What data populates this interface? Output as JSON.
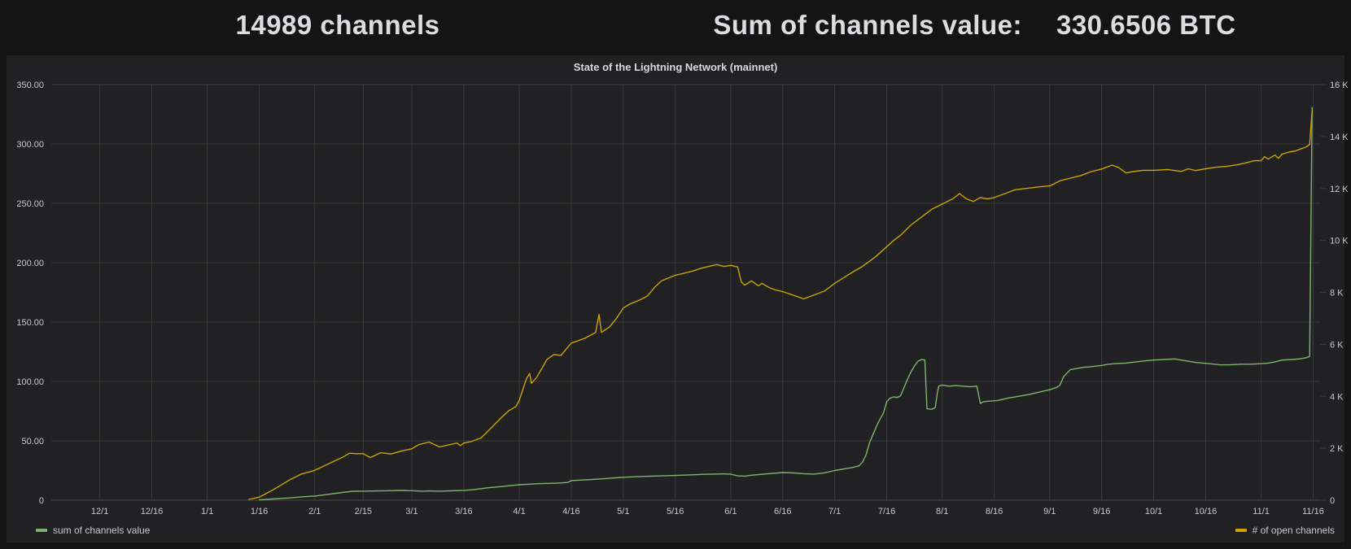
{
  "stats": {
    "channels_text": "14989 channels",
    "sum_label": "Sum of channels value:",
    "sum_value": "330.6506 BTC"
  },
  "chart": {
    "title": "State of the Lightning Network (mainnet)",
    "legend": [
      {
        "label": "sum of channels value",
        "color": "#7eb26d"
      },
      {
        "label": "# of open channels",
        "color": "#cca300"
      }
    ],
    "colors": {
      "grid": "#393939",
      "baseline": "#474747",
      "tick_text": "#c7c8c9",
      "panel_bg": "#212124",
      "page_bg": "#141414",
      "stat_text": "#dcdde1"
    }
  },
  "chart_data": {
    "type": "line",
    "title": "State of the Lightning Network (mainnet)",
    "grid": true,
    "legend_position": "bottom",
    "x_axis": {
      "unit": "date (M/D), Dec through mid-Nov",
      "domain_days": [
        -14,
        352
      ],
      "tick_days": [
        0,
        15,
        31,
        46,
        62,
        76,
        90,
        105,
        121,
        136,
        151,
        166,
        182,
        197,
        212,
        227,
        243,
        258,
        274,
        289,
        304,
        319,
        335,
        350
      ],
      "tick_labels": [
        "12/1",
        "12/16",
        "1/1",
        "1/16",
        "2/1",
        "2/15",
        "3/1",
        "3/16",
        "4/1",
        "4/16",
        "5/1",
        "5/16",
        "6/1",
        "6/16",
        "7/1",
        "7/16",
        "8/1",
        "8/16",
        "9/1",
        "9/16",
        "10/1",
        "10/16",
        "11/1",
        "11/16"
      ]
    },
    "y_axis_left": {
      "series": "sum of channels value",
      "unit": "BTC",
      "min": 0,
      "max": 350,
      "tick_values": [
        0,
        50,
        100,
        150,
        200,
        250,
        300,
        350
      ],
      "tick_labels": [
        "0",
        "50.00",
        "100.00",
        "150.00",
        "200.00",
        "250.00",
        "300.00",
        "350.00"
      ]
    },
    "y_axis_right": {
      "series": "# of open channels",
      "unit": "channels",
      "min": 0,
      "max": 16000,
      "tick_values": [
        0,
        2000,
        4000,
        6000,
        8000,
        10000,
        12000,
        14000,
        16000
      ],
      "tick_labels": [
        "0",
        "2 K",
        "4 K",
        "6 K",
        "8 K",
        "10 K",
        "12 K",
        "14 K",
        "16 K"
      ]
    },
    "series": [
      {
        "name": "sum of channels value",
        "axis": "left",
        "color": "#7eb26d",
        "final_value": 330.6506,
        "points": [
          [
            46,
            0.3
          ],
          [
            50,
            1
          ],
          [
            55,
            2
          ],
          [
            58,
            2.8
          ],
          [
            62,
            3.5
          ],
          [
            66,
            5
          ],
          [
            70,
            6.5
          ],
          [
            73,
            7.5
          ],
          [
            76,
            7.6
          ],
          [
            80,
            7.8
          ],
          [
            84,
            8
          ],
          [
            87,
            8.2
          ],
          [
            90,
            8
          ],
          [
            93,
            7.6
          ],
          [
            95,
            7.8
          ],
          [
            98,
            7.6
          ],
          [
            101,
            7.9
          ],
          [
            105,
            8.3
          ],
          [
            108,
            9
          ],
          [
            112,
            10.5
          ],
          [
            116,
            11.5
          ],
          [
            119,
            12.5
          ],
          [
            121,
            13
          ],
          [
            124,
            13.5
          ],
          [
            127,
            14
          ],
          [
            130,
            14.2
          ],
          [
            133,
            14.5
          ],
          [
            135,
            15
          ],
          [
            136,
            16.5
          ],
          [
            139,
            17
          ],
          [
            142,
            17.5
          ],
          [
            145,
            18
          ],
          [
            148,
            18.7
          ],
          [
            151,
            19.3
          ],
          [
            155,
            19.8
          ],
          [
            159,
            20.3
          ],
          [
            163,
            20.6
          ],
          [
            166,
            20.8
          ],
          [
            170,
            21.3
          ],
          [
            174,
            21.8
          ],
          [
            177,
            22
          ],
          [
            180,
            22.1
          ],
          [
            182,
            22
          ],
          [
            184,
            20.5
          ],
          [
            186,
            20.3
          ],
          [
            188,
            21
          ],
          [
            190,
            21.6
          ],
          [
            193,
            22.3
          ],
          [
            197,
            23.3
          ],
          [
            200,
            23
          ],
          [
            203,
            22.3
          ],
          [
            206,
            22
          ],
          [
            209,
            23
          ],
          [
            212,
            25
          ],
          [
            215,
            26.5
          ],
          [
            217,
            27.5
          ],
          [
            219,
            29
          ],
          [
            220,
            32
          ],
          [
            221,
            38
          ],
          [
            222,
            48
          ],
          [
            223,
            55
          ],
          [
            224,
            62
          ],
          [
            225,
            68
          ],
          [
            226,
            73
          ],
          [
            227,
            83
          ],
          [
            228,
            86
          ],
          [
            229,
            87
          ],
          [
            230,
            86.5
          ],
          [
            231,
            88
          ],
          [
            232,
            95
          ],
          [
            233,
            102
          ],
          [
            234,
            108
          ],
          [
            235,
            113
          ],
          [
            236,
            117
          ],
          [
            237,
            118.5
          ],
          [
            238,
            118
          ],
          [
            238.6,
            77
          ],
          [
            240,
            76.5
          ],
          [
            241,
            78
          ],
          [
            241.6,
            90
          ],
          [
            242,
            96
          ],
          [
            243,
            97
          ],
          [
            245,
            96
          ],
          [
            247,
            96.5
          ],
          [
            249,
            96
          ],
          [
            251,
            95.5
          ],
          [
            253,
            96
          ],
          [
            254,
            81.5
          ],
          [
            255,
            83
          ],
          [
            257,
            83.5
          ],
          [
            259,
            84
          ],
          [
            262,
            86
          ],
          [
            265,
            87.5
          ],
          [
            268,
            89
          ],
          [
            271,
            91
          ],
          [
            274,
            93
          ],
          [
            276,
            95
          ],
          [
            277,
            97
          ],
          [
            278,
            104
          ],
          [
            280,
            110
          ],
          [
            282,
            111
          ],
          [
            284,
            112
          ],
          [
            286,
            112.5
          ],
          [
            289,
            113.5
          ],
          [
            291,
            114.5
          ],
          [
            293,
            115
          ],
          [
            296,
            115.5
          ],
          [
            299,
            116.5
          ],
          [
            302,
            117.5
          ],
          [
            304,
            118
          ],
          [
            307,
            118.5
          ],
          [
            310,
            119
          ],
          [
            313,
            117.5
          ],
          [
            316,
            116
          ],
          [
            318,
            115.5
          ],
          [
            320,
            115
          ],
          [
            323,
            114
          ],
          [
            326,
            114
          ],
          [
            329,
            114.5
          ],
          [
            332,
            114.5
          ],
          [
            335,
            115
          ],
          [
            337,
            115.5
          ],
          [
            339,
            116.5
          ],
          [
            341,
            118
          ],
          [
            344,
            118.5
          ],
          [
            346,
            119
          ],
          [
            348,
            120
          ],
          [
            349,
            121
          ],
          [
            349.7,
            330.65
          ]
        ]
      },
      {
        "name": "# of open channels",
        "axis": "right",
        "color": "#cca300",
        "final_value": 14989,
        "points": [
          [
            43,
            30
          ],
          [
            46,
            120
          ],
          [
            50,
            400
          ],
          [
            55,
            800
          ],
          [
            58,
            1000
          ],
          [
            62,
            1150
          ],
          [
            66,
            1400
          ],
          [
            70,
            1650
          ],
          [
            72,
            1810
          ],
          [
            74,
            1790
          ],
          [
            76,
            1790
          ],
          [
            78,
            1640
          ],
          [
            81,
            1830
          ],
          [
            84,
            1780
          ],
          [
            87,
            1890
          ],
          [
            90,
            1980
          ],
          [
            92,
            2140
          ],
          [
            95,
            2240
          ],
          [
            98,
            2050
          ],
          [
            101,
            2140
          ],
          [
            103,
            2200
          ],
          [
            104,
            2100
          ],
          [
            105,
            2200
          ],
          [
            107,
            2250
          ],
          [
            110,
            2400
          ],
          [
            113,
            2800
          ],
          [
            116,
            3200
          ],
          [
            118,
            3450
          ],
          [
            120,
            3600
          ],
          [
            121,
            3840
          ],
          [
            123,
            4660
          ],
          [
            124,
            4880
          ],
          [
            124.5,
            4500
          ],
          [
            126,
            4720
          ],
          [
            129,
            5420
          ],
          [
            131,
            5610
          ],
          [
            133,
            5570
          ],
          [
            136,
            6050
          ],
          [
            138,
            6140
          ],
          [
            140,
            6240
          ],
          [
            143,
            6460
          ],
          [
            144,
            7150
          ],
          [
            144.7,
            6460
          ],
          [
            147,
            6670
          ],
          [
            149,
            6990
          ],
          [
            151,
            7400
          ],
          [
            153,
            7560
          ],
          [
            156,
            7720
          ],
          [
            158,
            7870
          ],
          [
            160,
            8190
          ],
          [
            162,
            8440
          ],
          [
            166,
            8660
          ],
          [
            168,
            8720
          ],
          [
            171,
            8820
          ],
          [
            173,
            8910
          ],
          [
            175,
            8980
          ],
          [
            178,
            9070
          ],
          [
            180,
            9000
          ],
          [
            182,
            9040
          ],
          [
            184,
            8980
          ],
          [
            185,
            8410
          ],
          [
            186,
            8280
          ],
          [
            188,
            8440
          ],
          [
            190,
            8250
          ],
          [
            191,
            8350
          ],
          [
            193,
            8190
          ],
          [
            195,
            8090
          ],
          [
            197,
            8030
          ],
          [
            199,
            7940
          ],
          [
            201,
            7850
          ],
          [
            203,
            7750
          ],
          [
            205,
            7850
          ],
          [
            207,
            7950
          ],
          [
            209,
            8050
          ],
          [
            212,
            8350
          ],
          [
            215,
            8600
          ],
          [
            218,
            8850
          ],
          [
            220,
            9000
          ],
          [
            222,
            9200
          ],
          [
            224,
            9400
          ],
          [
            227,
            9760
          ],
          [
            229,
            10000
          ],
          [
            231,
            10200
          ],
          [
            234,
            10600
          ],
          [
            237,
            10900
          ],
          [
            240,
            11200
          ],
          [
            243,
            11400
          ],
          [
            246,
            11600
          ],
          [
            248,
            11800
          ],
          [
            250,
            11600
          ],
          [
            252,
            11500
          ],
          [
            254,
            11650
          ],
          [
            256,
            11600
          ],
          [
            258,
            11650
          ],
          [
            261,
            11800
          ],
          [
            264,
            11950
          ],
          [
            267,
            12000
          ],
          [
            270,
            12050
          ],
          [
            274,
            12100
          ],
          [
            277,
            12300
          ],
          [
            280,
            12400
          ],
          [
            283,
            12500
          ],
          [
            286,
            12650
          ],
          [
            289,
            12750
          ],
          [
            292,
            12900
          ],
          [
            294,
            12800
          ],
          [
            296,
            12600
          ],
          [
            298,
            12650
          ],
          [
            301,
            12700
          ],
          [
            304,
            12700
          ],
          [
            308,
            12730
          ],
          [
            312,
            12660
          ],
          [
            314,
            12760
          ],
          [
            316,
            12690
          ],
          [
            319,
            12760
          ],
          [
            322,
            12820
          ],
          [
            325,
            12850
          ],
          [
            328,
            12910
          ],
          [
            331,
            13000
          ],
          [
            333,
            13070
          ],
          [
            335,
            13070
          ],
          [
            336,
            13230
          ],
          [
            337,
            13130
          ],
          [
            339,
            13290
          ],
          [
            340,
            13160
          ],
          [
            341,
            13320
          ],
          [
            343,
            13400
          ],
          [
            345,
            13450
          ],
          [
            347,
            13550
          ],
          [
            348,
            13600
          ],
          [
            349,
            13700
          ],
          [
            349.7,
            14989
          ]
        ]
      }
    ]
  }
}
